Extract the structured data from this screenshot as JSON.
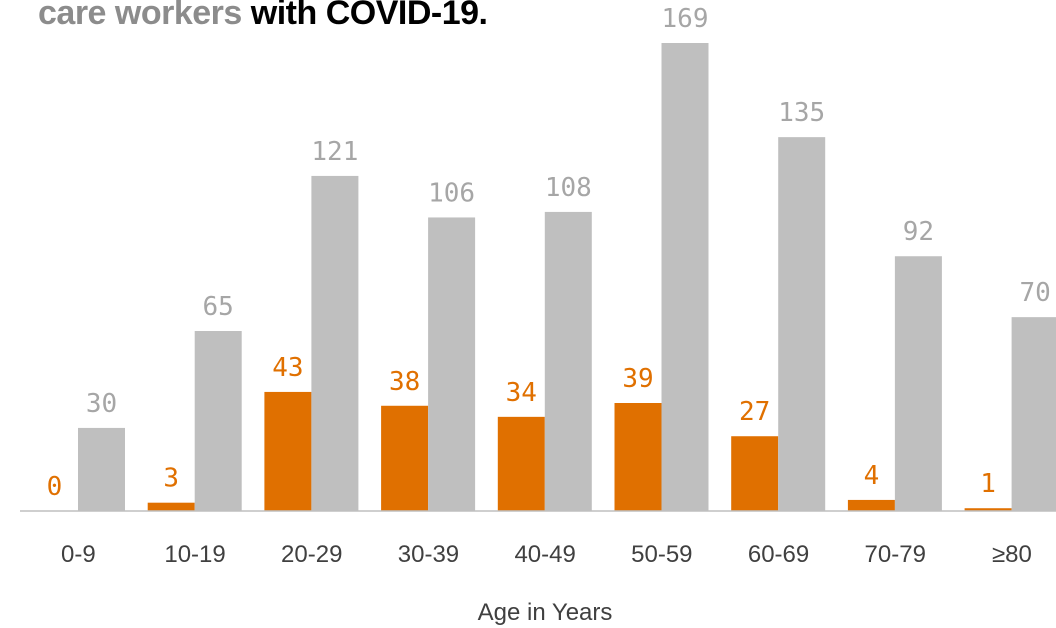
{
  "title": {
    "part1": "care workers",
    "part2": "with COVID-19."
  },
  "colors": {
    "series1": "#e07000",
    "series2": "#bfbfbf",
    "series1_label": "#e07000",
    "series2_label": "#a6a6a6",
    "axis": "#bfbfbf"
  },
  "chart_data": {
    "type": "bar",
    "categories": [
      "0-9",
      "10-19",
      "20-29",
      "30-39",
      "40-49",
      "50-59",
      "60-69",
      "70-79",
      "≥80"
    ],
    "series": [
      {
        "values": [
          0,
          3,
          43,
          38,
          34,
          39,
          27,
          4,
          1
        ]
      },
      {
        "values": [
          30,
          65,
          121,
          106,
          108,
          169,
          135,
          92,
          70
        ]
      }
    ],
    "xlabel": "Age in Years",
    "ylabel": "",
    "ylim": [
      0,
      169
    ],
    "grid": false,
    "legend": "none"
  }
}
